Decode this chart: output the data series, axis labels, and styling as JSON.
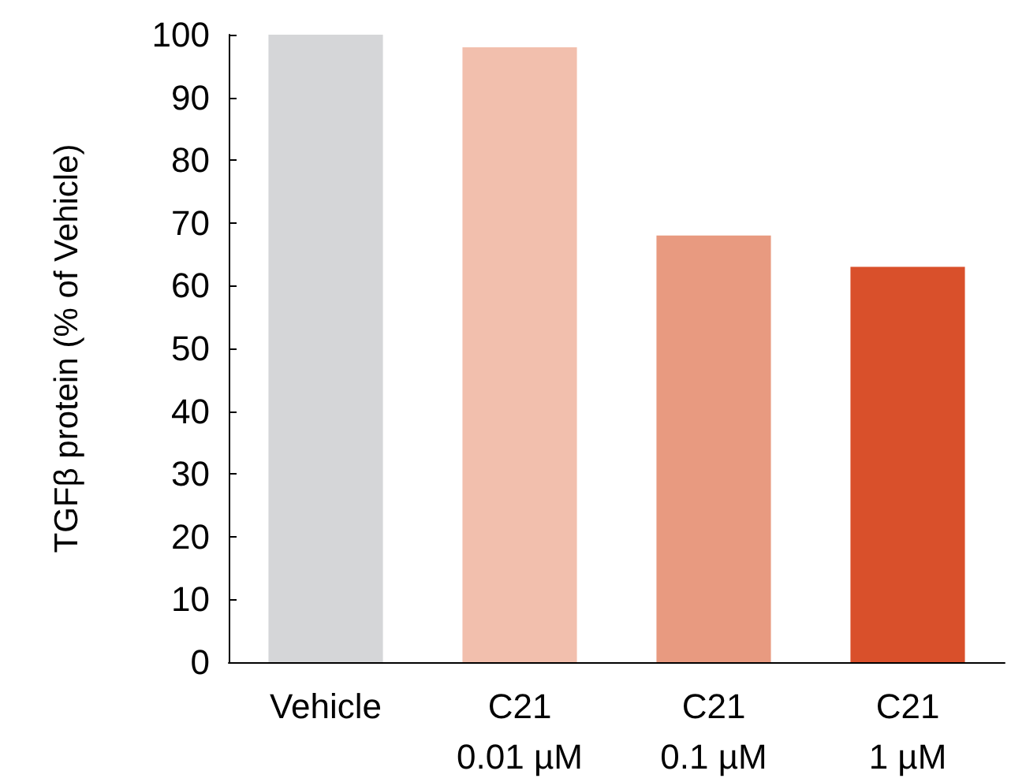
{
  "chart_data": {
    "type": "bar",
    "ylabel": "TGFβ protein (% of Vehicle)",
    "categories": [
      "Vehicle",
      "C21\n0.01 µM",
      "C21\n0.1 µM",
      "C21\n1 µM"
    ],
    "values": [
      100,
      98,
      68,
      63
    ],
    "colors": [
      "#d5d6d8",
      "#f2bfad",
      "#e89a80",
      "#d9502b"
    ],
    "ylim": [
      0,
      100
    ],
    "yticks": [
      0,
      10,
      20,
      30,
      40,
      50,
      60,
      70,
      80,
      90,
      100
    ]
  }
}
